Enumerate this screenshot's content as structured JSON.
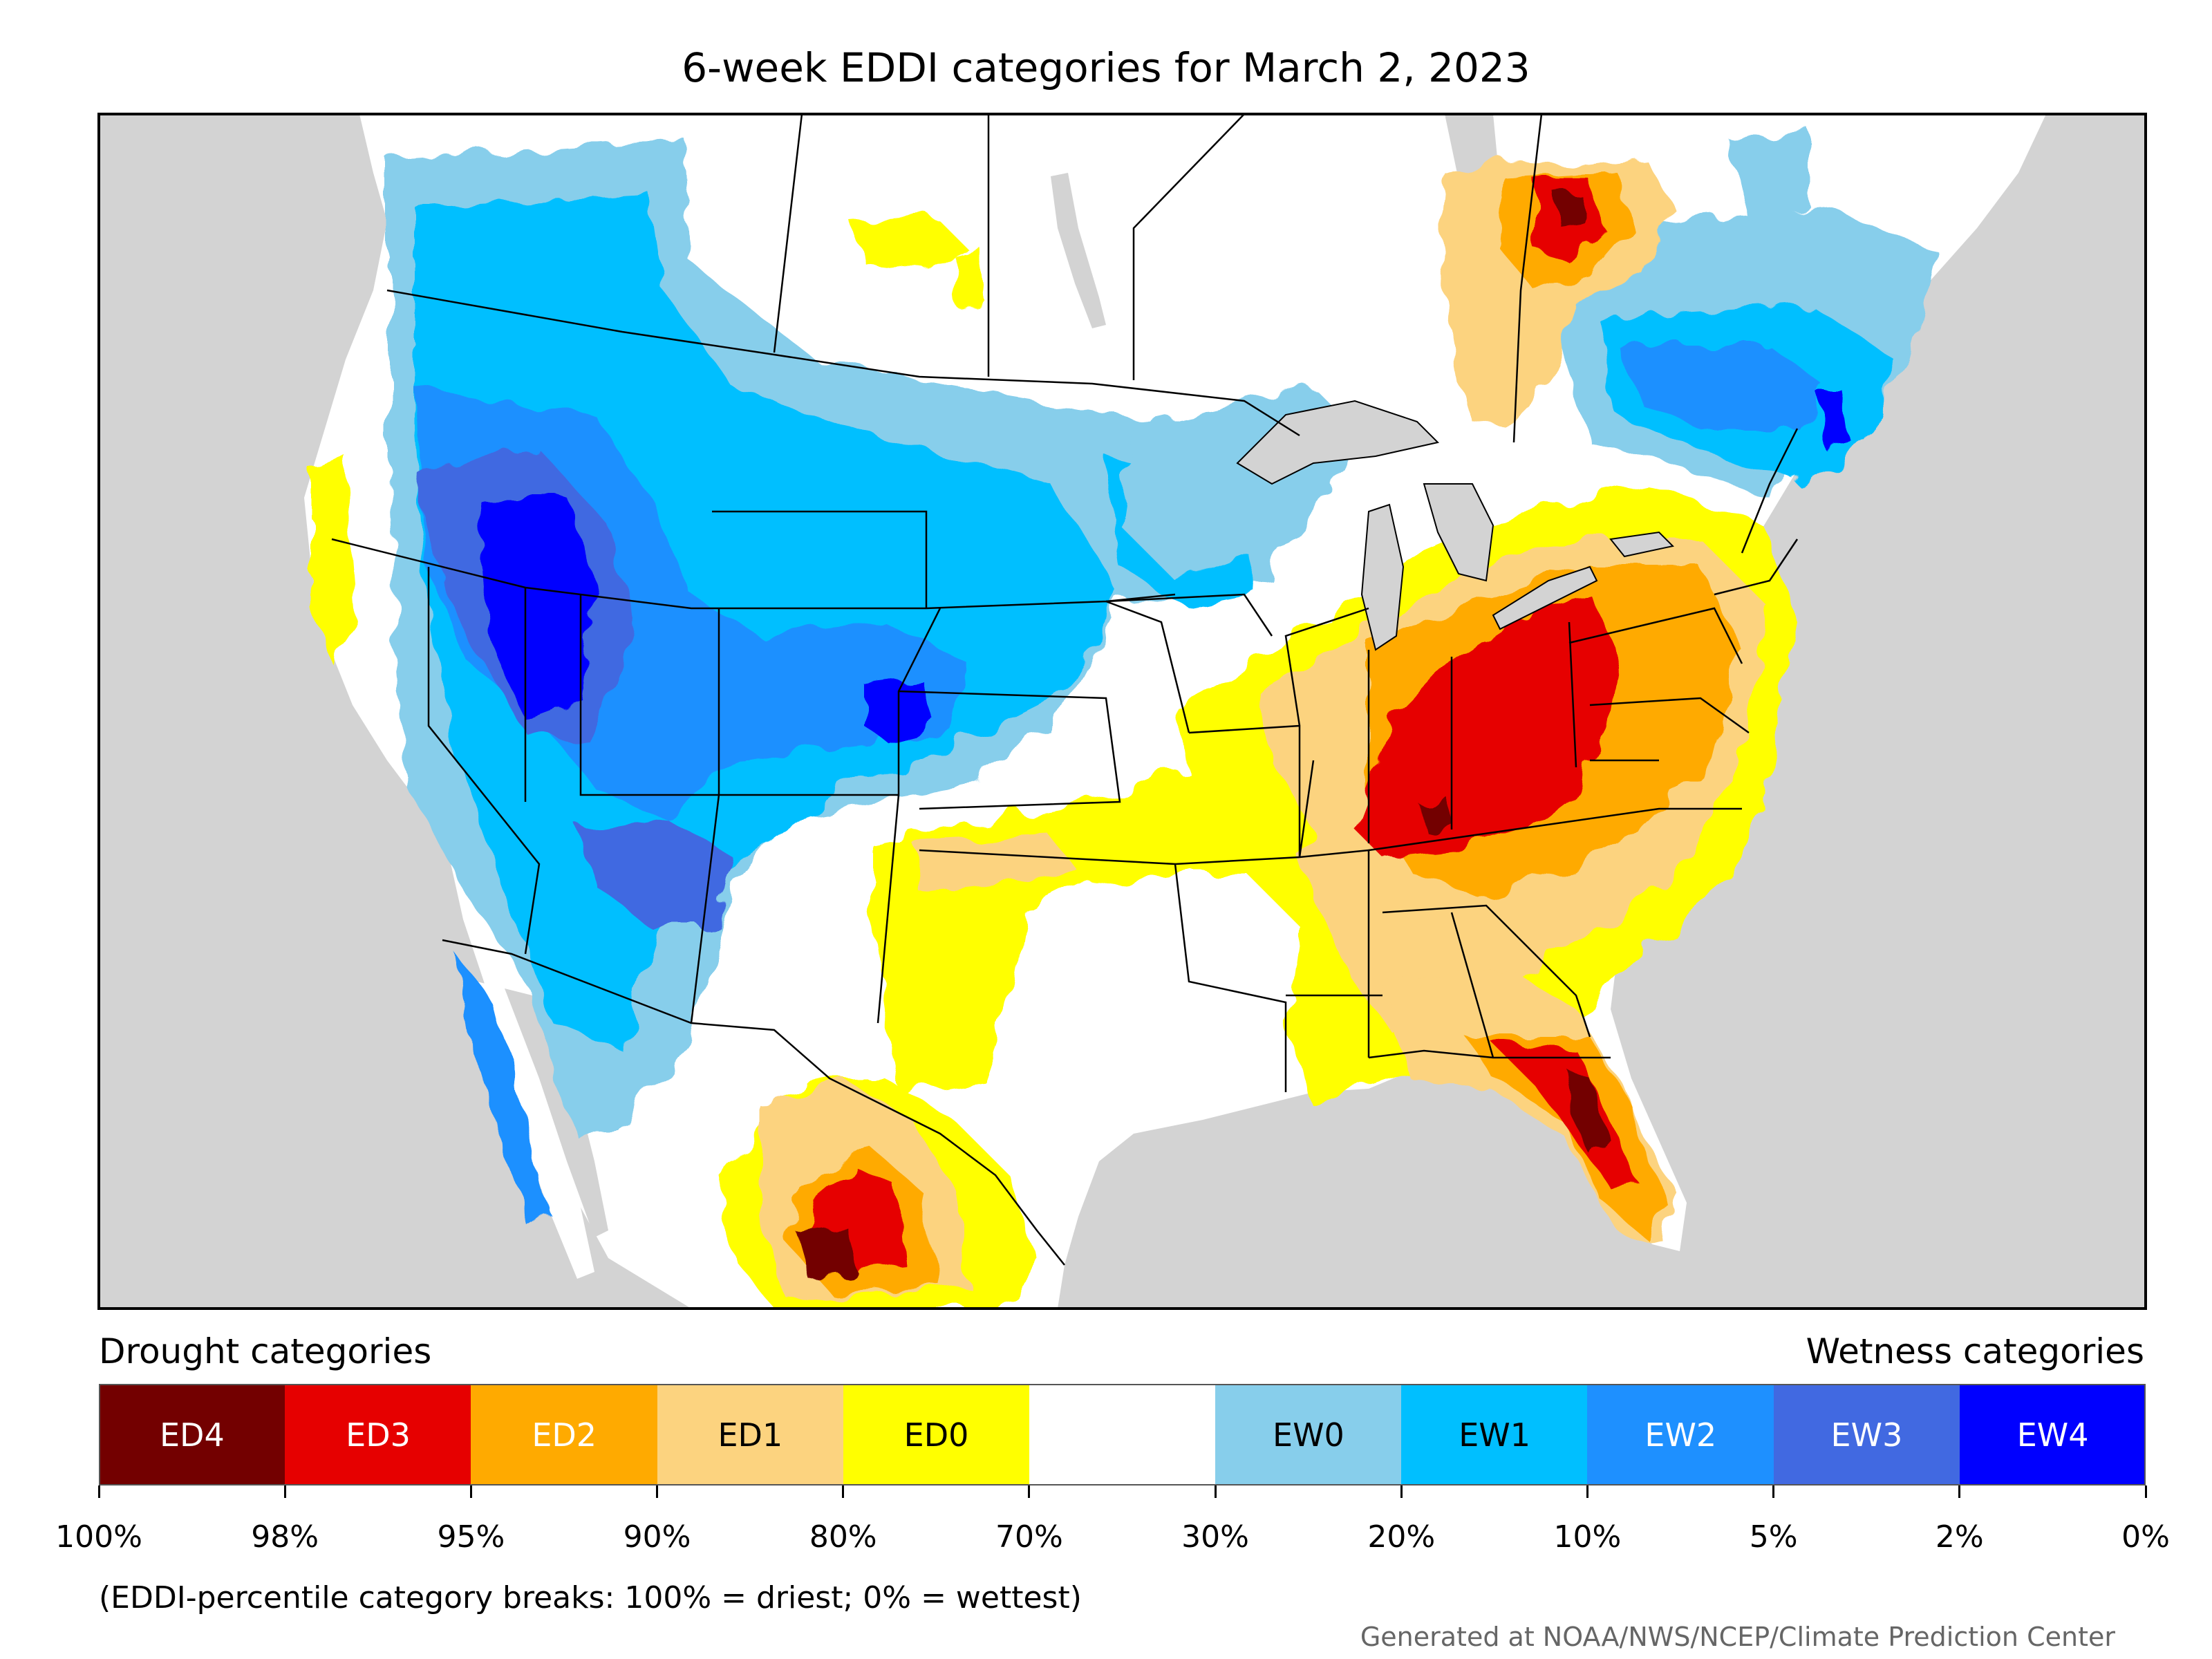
{
  "title": "6-week EDDI categories for March 2, 2023",
  "legend": {
    "drought_heading": "Drought categories",
    "wetness_heading": "Wetness categories",
    "categories": [
      {
        "label": "ED4",
        "color": "#730000",
        "text_color": "#ffffff"
      },
      {
        "label": "ED3",
        "color": "#e60000",
        "text_color": "#ffffff"
      },
      {
        "label": "ED2",
        "color": "#ffaa00",
        "text_color": "#ffffff"
      },
      {
        "label": "ED1",
        "color": "#fcd37f",
        "text_color": "#000000"
      },
      {
        "label": "ED0",
        "color": "#ffff00",
        "text_color": "#000000"
      },
      {
        "label": "",
        "color": "#ffffff",
        "text_color": "#000000"
      },
      {
        "label": "EW0",
        "color": "#87ceeb",
        "text_color": "#000000"
      },
      {
        "label": "EW1",
        "color": "#00bfff",
        "text_color": "#000000"
      },
      {
        "label": "EW2",
        "color": "#1e90ff",
        "text_color": "#ffffff"
      },
      {
        "label": "EW3",
        "color": "#4169e1",
        "text_color": "#ffffff"
      },
      {
        "label": "EW4",
        "color": "#0000ff",
        "text_color": "#ffffff"
      }
    ],
    "breaks": [
      "100%",
      "98%",
      "95%",
      "90%",
      "80%",
      "70%",
      "30%",
      "20%",
      "10%",
      "5%",
      "2%",
      "0%"
    ]
  },
  "note": "(EDDI-percentile category breaks: 100% = driest; 0% = wettest)",
  "credit": "Generated at NOAA/NWS/NCEP/Climate Prediction Center",
  "colors": {
    "land": "#ffffff",
    "water": "#d3d3d3",
    "border": "#000000"
  }
}
